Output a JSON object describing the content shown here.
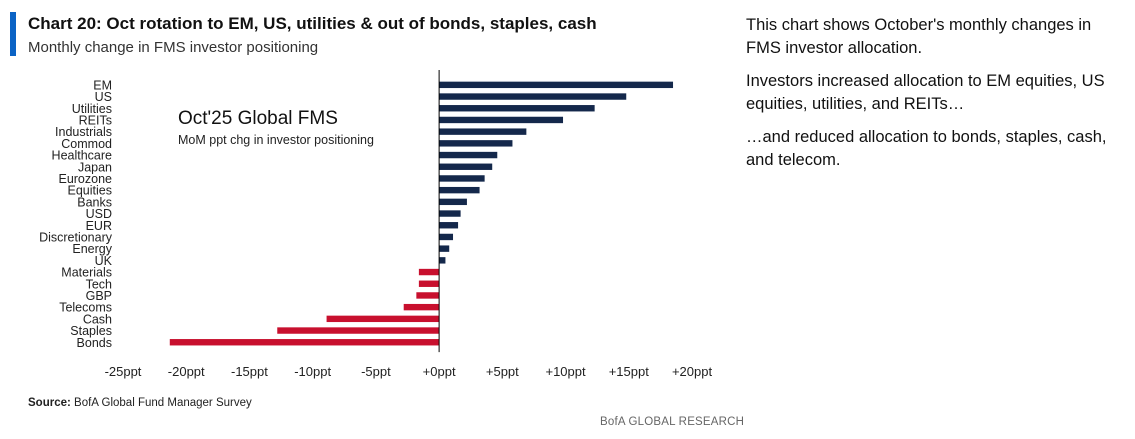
{
  "header": {
    "title": "Chart 20: Oct rotation to EM, US, utilities & out of bonds, staples, cash",
    "subtitle": "Monthly change in FMS investor positioning"
  },
  "colors": {
    "accent": "#0b63c5",
    "positive": "#14284b",
    "negative": "#c8102e"
  },
  "chart_data": {
    "type": "bar",
    "orientation": "horizontal",
    "inset_title": "Oct'25 Global FMS",
    "inset_subtitle": "MoM ppt chg in investor positioning",
    "categories": [
      "EM",
      "US",
      "Utilities",
      "REITs",
      "Industrials",
      "Commod",
      "Healthcare",
      "Japan",
      "Eurozone",
      "Equities",
      "Banks",
      "USD",
      "EUR",
      "Discretionary",
      "Energy",
      "UK",
      "Materials",
      "Tech",
      "GBP",
      "Telecoms",
      "Cash",
      "Staples",
      "Bonds"
    ],
    "values": [
      18.5,
      14.8,
      12.3,
      9.8,
      6.9,
      5.8,
      4.6,
      4.2,
      3.6,
      3.2,
      2.2,
      1.7,
      1.5,
      1.1,
      0.8,
      0.5,
      -1.6,
      -1.6,
      -1.8,
      -2.8,
      -8.9,
      -12.8,
      -21.3
    ],
    "xlim": [
      -25,
      20
    ],
    "xticks": [
      -25,
      -20,
      -15,
      -10,
      -5,
      0,
      5,
      10,
      15,
      20
    ],
    "xtick_labels": [
      "-25ppt",
      "-20ppt",
      "-15ppt",
      "-10ppt",
      "-5ppt",
      "+0ppt",
      "+5ppt",
      "+10ppt",
      "+15ppt",
      "+20ppt"
    ],
    "xlabel": "",
    "ylabel": ""
  },
  "footer": {
    "source_label": "Source:",
    "source_text": " BofA Global Fund Manager Survey",
    "brand": "BofA GLOBAL RESEARCH"
  },
  "commentary": {
    "p1": "This chart shows October's monthly changes in FMS investor allocation.",
    "p2": "Investors increased allocation to EM equities, US equities, utilities, and REITs…",
    "p3": "…and reduced allocation to bonds, staples, cash, and telecom."
  }
}
